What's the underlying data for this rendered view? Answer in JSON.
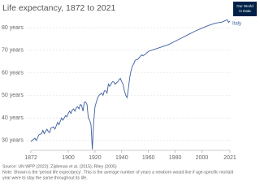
{
  "chart_data": {
    "type": "line",
    "title": "Life expectancy, 1872 to 2021",
    "logo": [
      "Our World",
      "in Data"
    ],
    "source": "Source: UN WPP (2022); Zijdeman et al. (2015); Riley (2005)",
    "note": [
      "Note: Shown is the 'period life expectancy'. This is the average number of years a newborn would live if age-specific mortalit",
      "year were to stay the same throughout its life."
    ],
    "x": [
      1872,
      1873,
      1875,
      1876,
      1878,
      1880,
      1881,
      1882,
      1884,
      1885,
      1886,
      1887,
      1889,
      1890,
      1892,
      1893,
      1895,
      1896,
      1898,
      1899,
      1900,
      1901,
      1902,
      1903,
      1904,
      1905,
      1906,
      1907,
      1908,
      1909,
      1910,
      1911,
      1912,
      1913,
      1914,
      1915,
      1916,
      1917,
      1918,
      1919,
      1920,
      1921,
      1922,
      1923,
      1924,
      1925,
      1926,
      1927,
      1928,
      1929,
      1930,
      1931,
      1932,
      1933,
      1934,
      1935,
      1936,
      1937,
      1938,
      1939,
      1940,
      1941,
      1942,
      1943,
      1944,
      1945,
      1946,
      1947,
      1948,
      1949,
      1950,
      1952,
      1955,
      1956,
      1960,
      1965,
      1970,
      1975,
      1980,
      1985,
      1990,
      1995,
      2000,
      2005,
      2010,
      2015,
      2019,
      2020,
      2021
    ],
    "series": [
      {
        "name": "Italy",
        "color": "#3c5e9e",
        "values": [
          29.5,
          30,
          31,
          30,
          32.5,
          33,
          34.5,
          33,
          35,
          34,
          33.5,
          35.5,
          36,
          35,
          38,
          37,
          40,
          39,
          41,
          40.5,
          42,
          43,
          42,
          43.5,
          44,
          43,
          44.5,
          45,
          44,
          46,
          45.5,
          43,
          47,
          47,
          46,
          40,
          39,
          37,
          26,
          38,
          45,
          47,
          49,
          50,
          50.5,
          51,
          50,
          52,
          52,
          51,
          55,
          54,
          55,
          56,
          56,
          55,
          55.5,
          56,
          57,
          57.5,
          56,
          55,
          52,
          50,
          49,
          53,
          58,
          61,
          63,
          64,
          65.5,
          66,
          68,
          67.5,
          69.5,
          70.5,
          71.5,
          72.5,
          74,
          75.5,
          77,
          78.5,
          79.8,
          81,
          82,
          82.5,
          83.5,
          82.3,
          83
        ]
      }
    ],
    "xlim": [
      1872,
      2021
    ],
    "xticks": [
      1872,
      1900,
      1920,
      1940,
      1960,
      1980,
      2000,
      2021
    ],
    "ylim": [
      26,
      84
    ],
    "yticks": [
      {
        "value": 30,
        "label": "30 years"
      },
      {
        "value": 40,
        "label": "40 years"
      },
      {
        "value": 50,
        "label": "50 years"
      },
      {
        "value": 60,
        "label": "60 years"
      },
      {
        "value": 70,
        "label": "70 years"
      },
      {
        "value": 80,
        "label": "80 years"
      }
    ],
    "grid": true
  }
}
